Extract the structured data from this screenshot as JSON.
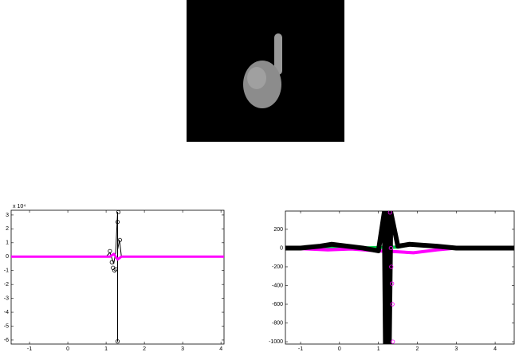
{
  "chart_data": [
    {
      "type": "line",
      "annotation": "x 10⁴",
      "xlim": [
        -1.48,
        4.08
      ],
      "ylim": [
        -6.29,
        3.34
      ],
      "xticks": [
        -1,
        0,
        1,
        2,
        3,
        4
      ],
      "yticks": [
        -6,
        -5,
        -4,
        -3,
        -2,
        -1,
        0,
        1,
        2,
        3
      ],
      "series": [
        {
          "color": "#000000",
          "width": 1,
          "markers": false,
          "x": [
            -1.48,
            1.0,
            1.1,
            1.2,
            1.25,
            1.3,
            1.3,
            1.3,
            1.35,
            1.4,
            4.08
          ],
          "values": [
            0,
            0,
            0.3,
            -0.5,
            0.3,
            3.2,
            -6.1,
            0.5,
            1.2,
            0,
            0
          ]
        },
        {
          "color": "#ff00ff",
          "width": 3,
          "markers": false,
          "x": [
            -1.48,
            1.1,
            1.2,
            1.3,
            1.4,
            4.08
          ],
          "values": [
            0,
            0,
            0.2,
            -0.2,
            0,
            0
          ]
        },
        {
          "color": "#000000",
          "width": 1,
          "markers": true,
          "x": [
            1.1,
            1.15,
            1.18,
            1.22,
            1.25,
            1.3,
            1.32,
            1.36,
            1.3
          ],
          "values": [
            0.4,
            -0.4,
            -0.8,
            -1.0,
            -0.9,
            2.5,
            3.2,
            1.2,
            -6.1
          ]
        }
      ]
    },
    {
      "type": "line",
      "xlim": [
        -1.39,
        4.49
      ],
      "ylim": [
        -1025,
        395
      ],
      "xticks": [
        -1,
        0,
        1,
        2,
        3,
        4
      ],
      "yticks": [
        -1000,
        -800,
        -600,
        -400,
        -200,
        0,
        200
      ],
      "series": [
        {
          "color": "#00cc44",
          "width": 4,
          "markers": false,
          "x": [
            -1.39,
            0.5,
            1.5,
            1.8,
            2.2,
            2.6,
            4.49
          ],
          "values": [
            0,
            0,
            10,
            35,
            30,
            0,
            0
          ]
        },
        {
          "color": "#ff00ff",
          "width": 4,
          "markers": false,
          "x": [
            -1.39,
            -0.8,
            -0.3,
            0.3,
            1.0,
            1.5,
            1.9,
            2.5,
            3.0,
            4.49
          ],
          "values": [
            0,
            -10,
            -20,
            -10,
            -30,
            -40,
            -50,
            -20,
            0,
            0
          ]
        },
        {
          "color": "#000000",
          "width": 6,
          "markers": false,
          "x": [
            -1.39,
            -1.0,
            -0.5,
            -0.2,
            0.2,
            0.6,
            1.0,
            1.15,
            1.18,
            1.22,
            1.28,
            1.32,
            1.5,
            1.8,
            2.5,
            3.0,
            4.49
          ],
          "values": [
            0,
            0,
            20,
            40,
            20,
            0,
            -30,
            380,
            -1025,
            380,
            -1025,
            380,
            20,
            40,
            20,
            0,
            0
          ]
        },
        {
          "color": "#000000",
          "width": 1,
          "markers": true,
          "x": [
            1.12,
            1.15,
            1.2
          ],
          "values": [
            220,
            80,
            -640
          ]
        },
        {
          "color": "#ff00ff",
          "width": 1,
          "markers": true,
          "x": [
            1.3,
            1.32,
            1.33,
            1.35,
            1.36,
            1.37
          ],
          "values": [
            380,
            0,
            -200,
            -380,
            -600,
            -1000
          ]
        }
      ]
    }
  ]
}
